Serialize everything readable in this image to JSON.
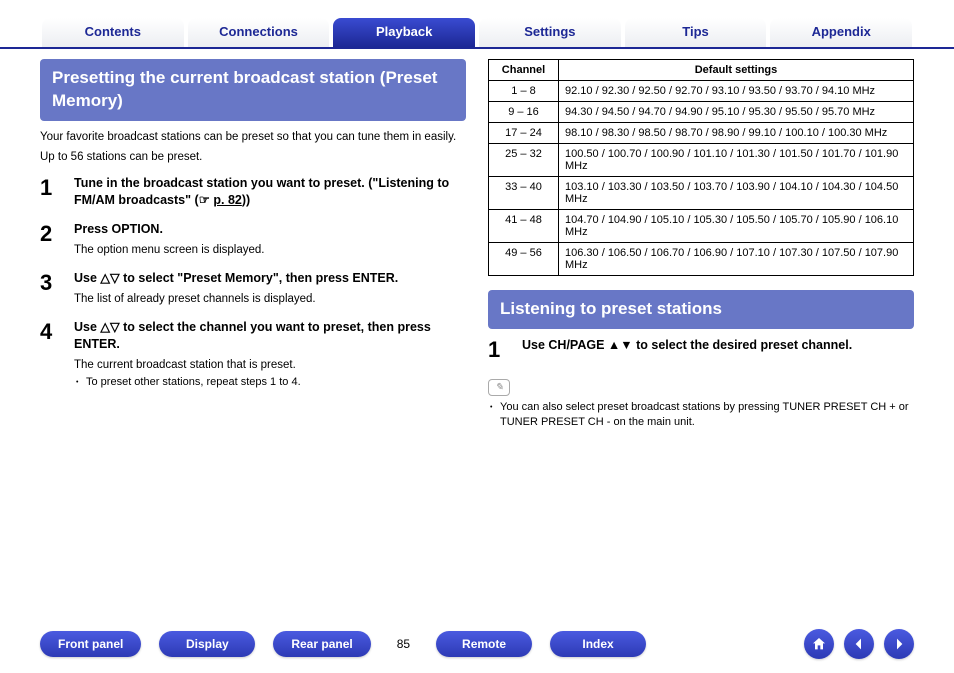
{
  "nav": {
    "tabs": [
      {
        "label": "Contents",
        "active": false
      },
      {
        "label": "Connections",
        "active": false
      },
      {
        "label": "Playback",
        "active": true
      },
      {
        "label": "Settings",
        "active": false
      },
      {
        "label": "Tips",
        "active": false
      },
      {
        "label": "Appendix",
        "active": false
      }
    ]
  },
  "left": {
    "heading": "Presetting the current broadcast station (Preset Memory)",
    "intro1": "Your favorite broadcast stations can be preset so that you can tune them in easily.",
    "intro2": "Up to 56 stations can be preset.",
    "steps": [
      {
        "num": "1",
        "title_pre": "Tune in the broadcast station you want to preset. (\"Listening to FM/AM broadcasts\" (☞ ",
        "link": "p. 82",
        "title_post": "))"
      },
      {
        "num": "2",
        "title": "Press OPTION.",
        "desc": "The option menu screen is displayed."
      },
      {
        "num": "3",
        "title": "Use △▽ to select \"Preset Memory\", then press ENTER.",
        "desc": "The list of already preset channels is displayed."
      },
      {
        "num": "4",
        "title": "Use △▽ to select the channel you want to preset, then press ENTER.",
        "desc": "The current broadcast station that is preset.",
        "sub": "To preset other stations, repeat steps 1 to 4."
      }
    ]
  },
  "right": {
    "table": {
      "headers": [
        "Channel",
        "Default settings"
      ],
      "rows": [
        {
          "ch": "1 – 8",
          "val": "92.10 / 92.30 / 92.50 / 92.70 / 93.10 / 93.50 / 93.70 / 94.10 MHz"
        },
        {
          "ch": "9 – 16",
          "val": "94.30 / 94.50 / 94.70 / 94.90 / 95.10 / 95.30 / 95.50 / 95.70 MHz"
        },
        {
          "ch": "17 – 24",
          "val": "98.10 / 98.30 / 98.50 / 98.70 / 98.90 / 99.10 / 100.10 / 100.30 MHz"
        },
        {
          "ch": "25 – 32",
          "val": "100.50 / 100.70 / 100.90 / 101.10 / 101.30 / 101.50 / 101.70 / 101.90 MHz"
        },
        {
          "ch": "33 – 40",
          "val": "103.10 / 103.30 / 103.50 / 103.70 / 103.90 / 104.10 / 104.30 / 104.50 MHz"
        },
        {
          "ch": "41 – 48",
          "val": "104.70 / 104.90 / 105.10 / 105.30 / 105.50 / 105.70 / 105.90 / 106.10 MHz"
        },
        {
          "ch": "49 – 56",
          "val": "106.30 / 106.50 / 106.70 / 106.90 / 107.10 / 107.30 / 107.50 / 107.90 MHz"
        }
      ]
    },
    "heading2": "Listening to preset stations",
    "step1": {
      "num": "1",
      "title": "Use CH/PAGE ▲▼ to select the desired preset channel."
    },
    "note": "You can also select preset broadcast stations by pressing TUNER PRESET CH + or TUNER PRESET CH - on the main unit."
  },
  "footer": {
    "buttons": [
      "Front panel",
      "Display",
      "Rear panel"
    ],
    "page": "85",
    "buttons2": [
      "Remote",
      "Index"
    ]
  },
  "colors": {
    "primary": "#1d2895",
    "section_bg": "#6877c6",
    "pill_gradient_top": "#4a5ae0",
    "pill_gradient_bot": "#2d3ab5"
  }
}
